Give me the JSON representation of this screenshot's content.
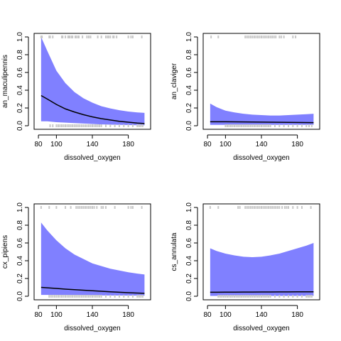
{
  "colors": {
    "band": "#8080ff",
    "line": "#000000",
    "rug": "#c8c8c8",
    "frame": "#000000"
  },
  "chart_data": [
    {
      "type": "line",
      "xlabel": "dissolved_oxygen",
      "ylabel": "an_maculipennis",
      "xlim": [
        80,
        200
      ],
      "ylim": [
        0,
        1
      ],
      "xticks": [
        80,
        100,
        140,
        180
      ],
      "yticks": [
        0.0,
        0.2,
        0.4,
        0.6,
        0.8,
        1.0
      ],
      "x": [
        83,
        90,
        100,
        110,
        120,
        130,
        140,
        150,
        160,
        170,
        180,
        190,
        198
      ],
      "fit": [
        0.34,
        0.3,
        0.24,
        0.19,
        0.155,
        0.125,
        0.1,
        0.08,
        0.065,
        0.05,
        0.04,
        0.03,
        0.025
      ],
      "lower": [
        0.05,
        0.05,
        0.04,
        0.035,
        0.03,
        0.025,
        0.02,
        0.015,
        0.012,
        0.01,
        0.008,
        0.006,
        0.005
      ],
      "upper": [
        1.0,
        0.84,
        0.62,
        0.48,
        0.38,
        0.31,
        0.26,
        0.22,
        0.195,
        0.175,
        0.16,
        0.15,
        0.145
      ],
      "rug_top": [
        83,
        84,
        92,
        93,
        96,
        106,
        107,
        110,
        113,
        114,
        115,
        117,
        118,
        121,
        122,
        124,
        125,
        129,
        134,
        136,
        138,
        146,
        150,
        155,
        157,
        158,
        160,
        163,
        164,
        167,
        180,
        183,
        185,
        195
      ],
      "rug_bottom": [
        93,
        96,
        100,
        102,
        104,
        106,
        108,
        110,
        112,
        114,
        116,
        118,
        120,
        122,
        124,
        126,
        128,
        130,
        132,
        134,
        136,
        138,
        140,
        142,
        144,
        146,
        148,
        150,
        155,
        160,
        165,
        170,
        175,
        180,
        185,
        190,
        192,
        194,
        196
      ]
    },
    {
      "type": "line",
      "xlabel": "dissolved_oxygen",
      "ylabel": "an_claviger",
      "xlim": [
        80,
        200
      ],
      "ylim": [
        0,
        1
      ],
      "xticks": [
        80,
        100,
        140,
        180
      ],
      "yticks": [
        0.0,
        0.2,
        0.4,
        0.6,
        0.8,
        1.0
      ],
      "x": [
        83,
        90,
        100,
        110,
        120,
        130,
        140,
        150,
        160,
        170,
        180,
        190,
        198
      ],
      "fit": [
        0.045,
        0.045,
        0.045,
        0.044,
        0.043,
        0.042,
        0.041,
        0.04,
        0.039,
        0.038,
        0.037,
        0.036,
        0.035
      ],
      "lower": [
        0.01,
        0.01,
        0.01,
        0.01,
        0.01,
        0.01,
        0.01,
        0.01,
        0.01,
        0.01,
        0.01,
        0.01,
        0.01
      ],
      "upper": [
        0.25,
        0.21,
        0.17,
        0.15,
        0.135,
        0.125,
        0.12,
        0.115,
        0.115,
        0.12,
        0.125,
        0.13,
        0.135
      ],
      "rug_top": [
        84,
        92,
        122,
        124,
        126,
        128,
        130,
        132,
        134,
        136,
        138,
        140,
        142,
        144,
        146,
        148,
        150,
        152,
        154,
        156,
        160,
        162,
        165,
        175,
        178
      ],
      "rug_bottom": [
        100,
        102,
        104,
        106,
        108,
        110,
        112,
        114,
        116,
        118,
        120,
        122,
        124,
        126,
        128,
        130,
        132,
        134,
        136,
        138,
        140,
        142,
        144,
        146,
        148,
        150,
        155,
        160,
        165,
        170,
        175,
        180,
        185,
        190,
        193,
        196
      ]
    },
    {
      "type": "line",
      "xlabel": "dissolved_oxygen",
      "ylabel": "cx_pipiens",
      "xlim": [
        80,
        200
      ],
      "ylim": [
        0,
        1
      ],
      "xticks": [
        80,
        100,
        140,
        180
      ],
      "yticks": [
        0.0,
        0.2,
        0.4,
        0.6,
        0.8,
        1.0
      ],
      "x": [
        83,
        90,
        100,
        110,
        120,
        130,
        140,
        150,
        160,
        170,
        180,
        190,
        198
      ],
      "fit": [
        0.1,
        0.095,
        0.088,
        0.08,
        0.074,
        0.068,
        0.062,
        0.056,
        0.05,
        0.045,
        0.04,
        0.036,
        0.033
      ],
      "lower": [
        0.015,
        0.015,
        0.014,
        0.013,
        0.012,
        0.011,
        0.01,
        0.009,
        0.008,
        0.008,
        0.007,
        0.007,
        0.006
      ],
      "upper": [
        0.83,
        0.74,
        0.63,
        0.54,
        0.47,
        0.42,
        0.37,
        0.34,
        0.31,
        0.29,
        0.27,
        0.255,
        0.245
      ],
      "rug_top": [
        83,
        92,
        100,
        110,
        116,
        122,
        124,
        126,
        128,
        130,
        132,
        134,
        136,
        138,
        140,
        142,
        145,
        150,
        152,
        155,
        165,
        180,
        183,
        185,
        195
      ],
      "rug_bottom": [
        92,
        94,
        96,
        98,
        100,
        102,
        104,
        106,
        108,
        110,
        112,
        114,
        116,
        118,
        120,
        122,
        124,
        126,
        128,
        130,
        132,
        134,
        136,
        138,
        140,
        142,
        144,
        146,
        148,
        150,
        155,
        160,
        165,
        170,
        175,
        180,
        185,
        190,
        192,
        194,
        196
      ]
    },
    {
      "type": "line",
      "xlabel": "dissolved_oxygen",
      "ylabel": "cs_annulata",
      "xlim": [
        80,
        200
      ],
      "ylim": [
        0,
        1
      ],
      "xticks": [
        80,
        100,
        140,
        180
      ],
      "yticks": [
        0.0,
        0.2,
        0.4,
        0.6,
        0.8,
        1.0
      ],
      "x": [
        83,
        90,
        100,
        110,
        120,
        130,
        140,
        150,
        160,
        170,
        180,
        190,
        198
      ],
      "fit": [
        0.045,
        0.045,
        0.046,
        0.046,
        0.047,
        0.047,
        0.048,
        0.048,
        0.049,
        0.049,
        0.05,
        0.05,
        0.05
      ],
      "lower": [
        0.004,
        0.004,
        0.004,
        0.004,
        0.004,
        0.004,
        0.004,
        0.004,
        0.004,
        0.004,
        0.004,
        0.004,
        0.004
      ],
      "upper": [
        0.54,
        0.51,
        0.48,
        0.46,
        0.445,
        0.44,
        0.445,
        0.46,
        0.48,
        0.51,
        0.54,
        0.57,
        0.6
      ],
      "rug_top": [
        83,
        92,
        114,
        116,
        122,
        124,
        126,
        128,
        130,
        132,
        134,
        136,
        138,
        140,
        142,
        144,
        146,
        148,
        150,
        152,
        154,
        156,
        158,
        160,
        163,
        166,
        168,
        170,
        175,
        180,
        185,
        195
      ],
      "rug_bottom": [
        92,
        94,
        96,
        98,
        100,
        102,
        104,
        106,
        108,
        110,
        112,
        114,
        116,
        118,
        120,
        122,
        124,
        126,
        128,
        130,
        132,
        134,
        136,
        138,
        140,
        142,
        144,
        146,
        148,
        150,
        155,
        160,
        165,
        170,
        175,
        180,
        185,
        190,
        192,
        194,
        196
      ]
    }
  ]
}
